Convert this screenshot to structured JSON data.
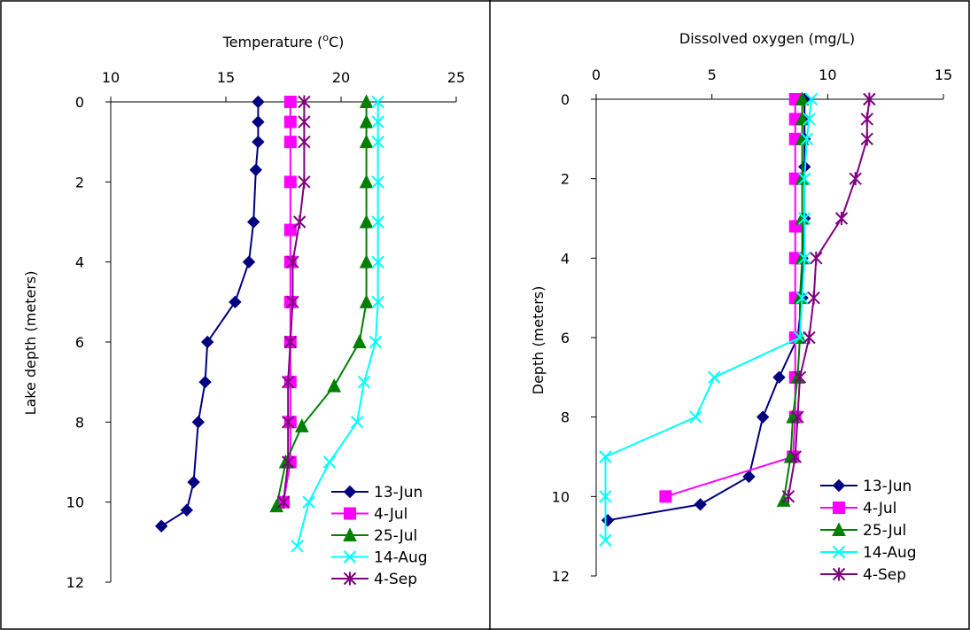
{
  "chart_data": [
    {
      "type": "line",
      "orientation": "depth-profile",
      "xlabel": "Temperature (°C)",
      "xlabel_parts": [
        "Temperature (",
        "o",
        "C)"
      ],
      "ylabel": "Lake depth (meters)",
      "xlim": [
        10,
        25
      ],
      "ylim": [
        0,
        12
      ],
      "x_ticks": [
        "10",
        "15",
        "20",
        "25"
      ],
      "y_ticks": [
        "0",
        "2",
        "4",
        "6",
        "8",
        "10",
        "12"
      ],
      "y_inverted": true,
      "x_axis_position": "top",
      "grid": false,
      "legend_position": "bottom-right",
      "series": [
        {
          "name": "13-Jun",
          "color": "#000080",
          "marker": "diamond",
          "points": [
            [
              16.4,
              0
            ],
            [
              16.4,
              0.5
            ],
            [
              16.4,
              1
            ],
            [
              16.3,
              1.7
            ],
            [
              16.2,
              3
            ],
            [
              16.0,
              4
            ],
            [
              15.4,
              5
            ],
            [
              14.2,
              6
            ],
            [
              14.1,
              7
            ],
            [
              13.8,
              8
            ],
            [
              13.6,
              9.5
            ],
            [
              13.3,
              10.2
            ],
            [
              12.2,
              10.6
            ]
          ]
        },
        {
          "name": "4-Jul",
          "color": "#FF00FF",
          "marker": "square",
          "points": [
            [
              17.8,
              0
            ],
            [
              17.8,
              0.5
            ],
            [
              17.8,
              1
            ],
            [
              17.8,
              2
            ],
            [
              17.8,
              3.2
            ],
            [
              17.8,
              4
            ],
            [
              17.8,
              5
            ],
            [
              17.8,
              6
            ],
            [
              17.8,
              7
            ],
            [
              17.8,
              8
            ],
            [
              17.8,
              9
            ],
            [
              17.5,
              10
            ]
          ]
        },
        {
          "name": "25-Jul",
          "color": "#008000",
          "marker": "triangle",
          "points": [
            [
              21.1,
              0
            ],
            [
              21.1,
              0.5
            ],
            [
              21.1,
              1
            ],
            [
              21.1,
              2
            ],
            [
              21.1,
              3
            ],
            [
              21.1,
              4
            ],
            [
              21.1,
              5
            ],
            [
              20.8,
              6
            ],
            [
              19.7,
              7.1
            ],
            [
              18.3,
              8.1
            ],
            [
              17.6,
              9
            ],
            [
              17.2,
              10.1
            ]
          ]
        },
        {
          "name": "14-Aug",
          "color": "#00FFFF",
          "marker": "x",
          "points": [
            [
              21.6,
              0
            ],
            [
              21.6,
              0.5
            ],
            [
              21.6,
              1
            ],
            [
              21.6,
              2
            ],
            [
              21.6,
              3
            ],
            [
              21.6,
              4
            ],
            [
              21.6,
              5
            ],
            [
              21.5,
              6
            ],
            [
              21.0,
              7
            ],
            [
              20.7,
              8
            ],
            [
              19.5,
              9
            ],
            [
              18.6,
              10
            ],
            [
              18.1,
              11.1
            ]
          ]
        },
        {
          "name": "4-Sep",
          "color": "#800080",
          "marker": "star",
          "points": [
            [
              18.4,
              0
            ],
            [
              18.4,
              0.5
            ],
            [
              18.4,
              1
            ],
            [
              18.4,
              2
            ],
            [
              18.2,
              3
            ],
            [
              17.9,
              4
            ],
            [
              17.9,
              5
            ],
            [
              17.8,
              6
            ],
            [
              17.7,
              7
            ],
            [
              17.7,
              8
            ],
            [
              17.7,
              9
            ],
            [
              17.5,
              10
            ]
          ]
        }
      ]
    },
    {
      "type": "line",
      "orientation": "depth-profile",
      "xlabel": "Dissolved oxygen (mg/L)",
      "ylabel": "Depth (meters)",
      "xlim": [
        0,
        15
      ],
      "ylim": [
        0,
        12
      ],
      "x_ticks": [
        "0",
        "5",
        "10",
        "15"
      ],
      "y_ticks": [
        "0",
        "2",
        "4",
        "6",
        "8",
        "10",
        "12"
      ],
      "y_inverted": true,
      "x_axis_position": "top",
      "grid": false,
      "legend_position": "bottom-right",
      "series": [
        {
          "name": "13-Jun",
          "color": "#000080",
          "marker": "diamond",
          "points": [
            [
              9.0,
              0
            ],
            [
              9.0,
              0.5
            ],
            [
              9.0,
              1
            ],
            [
              9.0,
              1.7
            ],
            [
              9.0,
              3
            ],
            [
              8.9,
              4
            ],
            [
              8.9,
              5
            ],
            [
              8.7,
              6
            ],
            [
              7.9,
              7
            ],
            [
              7.2,
              8
            ],
            [
              6.6,
              9.5
            ],
            [
              4.5,
              10.2
            ],
            [
              0.5,
              10.6
            ]
          ]
        },
        {
          "name": "4-Jul",
          "color": "#FF00FF",
          "marker": "square",
          "points": [
            [
              8.6,
              0
            ],
            [
              8.6,
              0.5
            ],
            [
              8.6,
              1
            ],
            [
              8.6,
              2
            ],
            [
              8.6,
              3.2
            ],
            [
              8.6,
              4
            ],
            [
              8.6,
              5
            ],
            [
              8.6,
              6
            ],
            [
              8.6,
              7
            ],
            [
              8.6,
              8
            ],
            [
              8.5,
              9
            ],
            [
              3.0,
              10
            ]
          ]
        },
        {
          "name": "25-Jul",
          "color": "#008000",
          "marker": "triangle",
          "points": [
            [
              8.9,
              0
            ],
            [
              8.9,
              0.5
            ],
            [
              8.9,
              1
            ],
            [
              8.9,
              2
            ],
            [
              8.9,
              3
            ],
            [
              8.9,
              4
            ],
            [
              8.8,
              5
            ],
            [
              8.8,
              6
            ],
            [
              8.7,
              7
            ],
            [
              8.5,
              8
            ],
            [
              8.4,
              9
            ],
            [
              8.1,
              10.1
            ]
          ]
        },
        {
          "name": "14-Aug",
          "color": "#00FFFF",
          "marker": "x",
          "points": [
            [
              9.3,
              0
            ],
            [
              9.2,
              0.5
            ],
            [
              9.1,
              1
            ],
            [
              9.0,
              2
            ],
            [
              9.0,
              3
            ],
            [
              9.0,
              4
            ],
            [
              8.9,
              5
            ],
            [
              8.8,
              6
            ],
            [
              5.1,
              7
            ],
            [
              4.3,
              8
            ],
            [
              0.4,
              9
            ],
            [
              0.4,
              10
            ],
            [
              0.4,
              11.1
            ]
          ]
        },
        {
          "name": "4-Sep",
          "color": "#800080",
          "marker": "star",
          "points": [
            [
              11.8,
              0
            ],
            [
              11.7,
              0.5
            ],
            [
              11.7,
              1
            ],
            [
              11.2,
              2
            ],
            [
              10.6,
              3
            ],
            [
              9.5,
              4
            ],
            [
              9.4,
              5
            ],
            [
              9.2,
              6
            ],
            [
              8.8,
              7
            ],
            [
              8.7,
              8
            ],
            [
              8.6,
              9
            ],
            [
              8.3,
              10
            ]
          ]
        }
      ]
    }
  ]
}
